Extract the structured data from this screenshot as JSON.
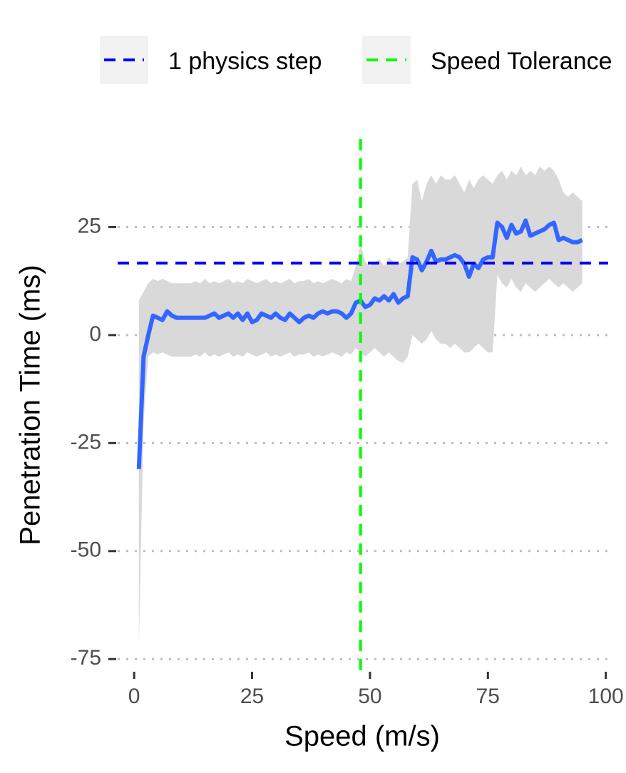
{
  "chart_data": {
    "type": "line",
    "x_label": "Speed (m/s)",
    "y_label": "Penetration Time (ms)",
    "x": [
      1,
      2,
      3,
      4,
      5,
      6,
      7,
      8,
      9,
      10,
      11,
      12,
      13,
      14,
      15,
      16,
      17,
      18,
      19,
      20,
      21,
      22,
      23,
      24,
      25,
      26,
      27,
      28,
      29,
      30,
      31,
      32,
      33,
      34,
      35,
      36,
      37,
      38,
      39,
      40,
      41,
      42,
      43,
      44,
      45,
      46,
      47,
      48,
      49,
      50,
      51,
      52,
      53,
      54,
      55,
      56,
      57,
      58,
      59,
      60,
      61,
      62,
      63,
      64,
      65,
      66,
      67,
      68,
      69,
      70,
      71,
      72,
      73,
      74,
      75,
      76,
      77,
      78,
      79,
      80,
      81,
      82,
      83,
      84,
      85,
      86,
      87,
      88,
      89,
      90,
      91,
      92,
      93,
      94,
      95
    ],
    "values": [
      -31,
      -5,
      0,
      4.5,
      4,
      3.5,
      5.5,
      4.5,
      4,
      4,
      4,
      4,
      4,
      4,
      4,
      4.5,
      5,
      4,
      4.5,
      5,
      4,
      5,
      3.5,
      5,
      3,
      3.5,
      5,
      4.5,
      4,
      5,
      4,
      3.5,
      5,
      4,
      3,
      4,
      4.5,
      4,
      5,
      5.5,
      5,
      5.5,
      5.5,
      5,
      4,
      5,
      7.5,
      8,
      6.5,
      7,
      8.5,
      8,
      9,
      8,
      9.5,
      7.5,
      8.5,
      9,
      18,
      17.5,
      15,
      17,
      19.5,
      17,
      17.5,
      17.5,
      18,
      18.5,
      18,
      16.5,
      13.5,
      16.5,
      15.5,
      17.5,
      18,
      18,
      26,
      25,
      22.5,
      25.5,
      23.5,
      24,
      26.5,
      23,
      23.5,
      24,
      24.5,
      25.5,
      26,
      22,
      22.5,
      22,
      21.5,
      21.5,
      22
    ],
    "color": "#3366ff",
    "ribbon": {
      "color": "#d9d9d9",
      "upper": [
        8,
        10,
        12,
        13,
        12.5,
        13,
        12.5,
        12,
        12,
        12,
        12,
        12,
        12.5,
        12,
        13,
        12,
        12.5,
        12,
        12.5,
        13,
        12,
        12.5,
        12,
        13,
        12.5,
        12,
        12.5,
        13,
        12,
        12.5,
        12,
        12.5,
        13,
        12,
        12.5,
        12.5,
        13,
        12,
        12.5,
        12,
        12.5,
        13,
        12.5,
        12,
        13,
        12.5,
        16,
        21,
        17,
        16,
        17,
        17.5,
        16,
        18,
        17,
        16.5,
        17,
        18,
        35,
        36,
        31,
        35,
        37,
        35,
        37,
        36,
        36,
        37,
        35,
        33,
        36,
        34,
        36,
        37,
        36,
        35,
        37,
        38,
        36,
        38,
        37,
        39,
        37,
        38,
        37,
        39,
        38,
        39,
        38,
        36,
        33,
        32,
        33,
        32,
        31
      ],
      "lower": [
        -72,
        -20,
        -5,
        -4,
        -4.5,
        -4,
        -4.5,
        -5,
        -5,
        -5,
        -5,
        -5,
        -4.5,
        -5,
        -4,
        -5,
        -4.5,
        -5,
        -4.5,
        -4,
        -5,
        -4.5,
        -5,
        -4,
        -4.5,
        -5,
        -4.5,
        -4,
        -5,
        -4.5,
        -5,
        -4.5,
        -4,
        -5,
        -4.5,
        -4.5,
        -4,
        -5,
        -4.5,
        -5,
        -4.5,
        -4,
        -4.5,
        -5,
        -4,
        -4.5,
        -3,
        -4,
        -5,
        -4,
        -3,
        -4,
        -5,
        -4,
        -5,
        -6,
        -6.5,
        -5,
        0,
        -1,
        -2,
        -1,
        1,
        -1,
        -2,
        -2,
        -3,
        -2,
        -3,
        -4,
        -4,
        -3,
        -2,
        -3,
        -4,
        -4,
        14,
        12,
        11,
        13,
        11,
        10,
        12,
        11,
        10,
        11,
        12,
        13,
        12,
        11,
        12,
        11,
        10,
        11,
        12
      ]
    },
    "reference_lines": [
      {
        "name": "1 physics step",
        "orientation": "horizontal",
        "value": 16.67,
        "color": "#0000ff"
      },
      {
        "name": "Speed Tolerance",
        "orientation": "vertical",
        "value": 48,
        "color": "#00ff00"
      }
    ],
    "xlim": [
      -3.5,
      100.5
    ],
    "ylim": [
      -77.6,
      46.2
    ],
    "xticks": [
      0,
      25,
      50,
      75,
      100
    ],
    "yticks": [
      -75,
      -50,
      -25,
      0,
      25
    ],
    "grid": "horizontal",
    "legend_position": "top"
  }
}
